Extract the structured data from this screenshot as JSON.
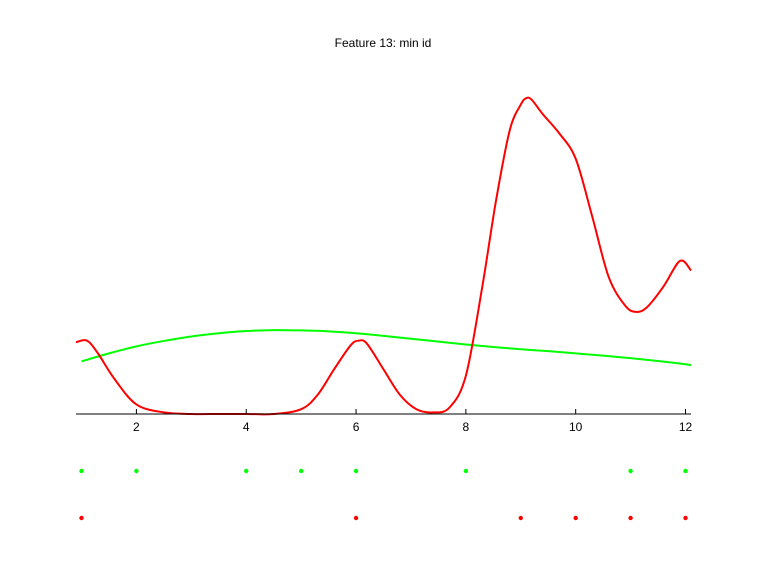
{
  "chart_data": {
    "type": "line",
    "title": "Feature 13: min id",
    "xlabel": "",
    "ylabel": "",
    "xlim": [
      0.9,
      12.1
    ],
    "ylim": [
      0,
      1
    ],
    "x_ticks": [
      2,
      4,
      6,
      8,
      10,
      12
    ],
    "grid": false,
    "colors": {
      "green": "#00ff00",
      "red": "#ff0000",
      "axis": "#000000"
    },
    "series": [
      {
        "color": "#00ff00",
        "x": [
          1,
          1.5,
          2,
          2.5,
          3,
          3.5,
          4,
          4.5,
          5,
          5.5,
          6,
          6.5,
          7,
          7.5,
          8,
          8.5,
          9,
          9.5,
          10,
          10.5,
          11,
          11.5,
          12,
          12.1
        ],
        "y": [
          0.165,
          0.19,
          0.212,
          0.229,
          0.243,
          0.253,
          0.26,
          0.263,
          0.262,
          0.259,
          0.253,
          0.245,
          0.236,
          0.227,
          0.218,
          0.21,
          0.203,
          0.197,
          0.19,
          0.183,
          0.175,
          0.166,
          0.156,
          0.153
        ]
      },
      {
        "color": "#ff0000",
        "x": [
          0.9,
          1.1,
          1.3,
          1.6,
          2.0,
          2.5,
          3.0,
          3.5,
          4.0,
          4.5,
          5.0,
          5.3,
          5.6,
          5.9,
          6.05,
          6.2,
          6.5,
          6.8,
          7.1,
          7.4,
          7.7,
          8.0,
          8.3,
          8.55,
          8.8,
          9.0,
          9.1,
          9.2,
          9.4,
          9.7,
          10.0,
          10.3,
          10.6,
          10.9,
          11.1,
          11.3,
          11.6,
          11.9,
          12.1
        ],
        "y": [
          0.225,
          0.23,
          0.19,
          0.11,
          0.03,
          0.005,
          0,
          0,
          0,
          0,
          0.015,
          0.06,
          0.14,
          0.215,
          0.23,
          0.22,
          0.14,
          0.06,
          0.015,
          0.005,
          0.02,
          0.12,
          0.4,
          0.67,
          0.89,
          0.97,
          0.99,
          0.985,
          0.94,
          0.88,
          0.8,
          0.62,
          0.43,
          0.34,
          0.32,
          0.335,
          0.4,
          0.48,
          0.45
        ]
      }
    ],
    "points": [
      {
        "color": "#00ff00",
        "x": [
          1,
          2,
          4,
          5,
          6,
          8,
          11,
          12
        ]
      },
      {
        "color": "#ff0000",
        "x": [
          1,
          6,
          9,
          10,
          11,
          12
        ]
      }
    ]
  }
}
